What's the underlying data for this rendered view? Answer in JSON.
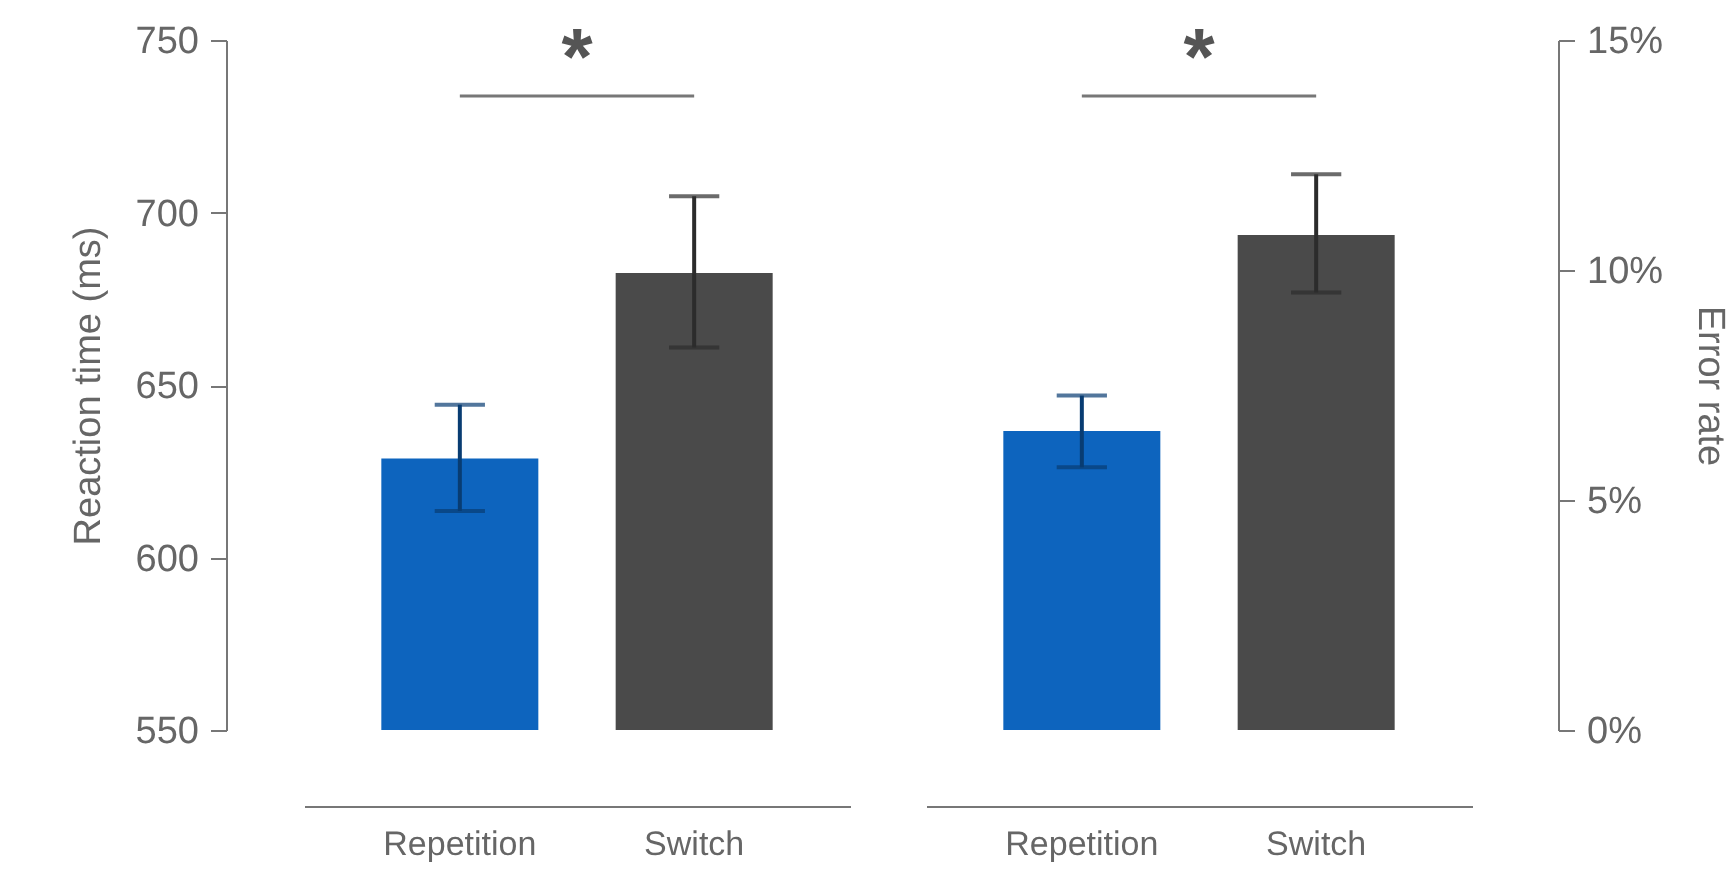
{
  "chart_data": [
    {
      "type": "bar",
      "categories": [
        "Repetition",
        "Switch"
      ],
      "ylabel": "Reaction time (ms)",
      "ylim": [
        550,
        750
      ],
      "yticks": [
        550,
        600,
        650,
        700,
        750
      ],
      "grid": false,
      "annotations": [
        "*"
      ],
      "series": [
        {
          "values": [
            628.7,
            682.5
          ],
          "colors": [
            "#0d64be",
            "#4a4a4a"
          ],
          "errors": [
            [
              613.5,
              644.3
            ],
            [
              660.9,
              704.7
            ]
          ]
        }
      ]
    },
    {
      "type": "bar",
      "categories": [
        "Repetition",
        "Switch"
      ],
      "y2label": "Error rate",
      "y2lim": [
        0,
        15
      ],
      "y2ticks": [
        {
          "value": 0,
          "label": "0%"
        },
        {
          "value": 5,
          "label": "5%"
        },
        {
          "value": 10,
          "label": "10%"
        },
        {
          "value": 15,
          "label": "15%"
        }
      ],
      "grid": false,
      "annotations": [
        "*"
      ],
      "series": [
        {
          "axis": "y2",
          "values": [
            6.5,
            10.76
          ],
          "colors": [
            "#0d64be",
            "#4a4a4a"
          ],
          "errors": [
            [
              5.71,
              7.27
            ],
            [
              9.51,
              12.08
            ]
          ]
        }
      ]
    }
  ]
}
